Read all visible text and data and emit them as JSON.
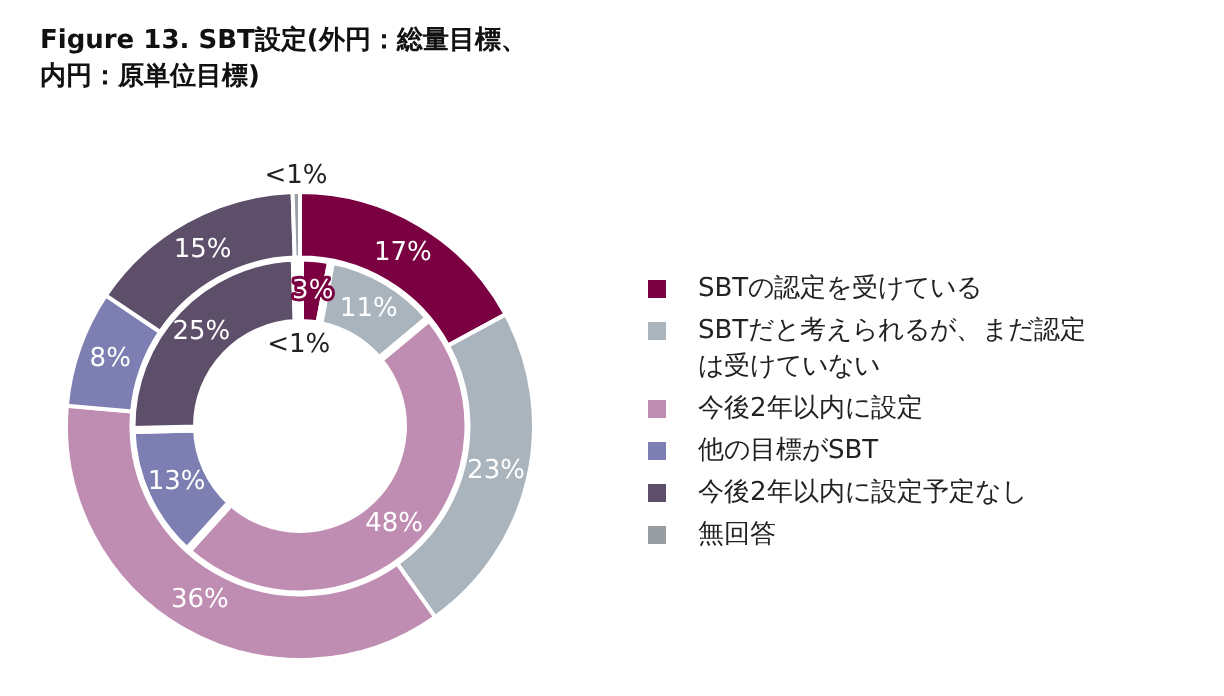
{
  "chart_data": {
    "type": "donut",
    "title": "Figure 13. SBT設定(外円：総量目標、内円：原単位目標)",
    "categories": [
      "SBTの認定を受けている",
      "SBTだと考えられるが、まだ認定は受けていない",
      "今後2年以内に設定",
      "他の目標がSBT",
      "今後2年以内に設定予定なし",
      "無回答"
    ],
    "colors": [
      "#7b0041",
      "#a9b4bd",
      "#c08db2",
      "#7d7fb2",
      "#5d4e6a",
      "#999ea3"
    ],
    "series": [
      {
        "values": [
          17,
          23,
          36,
          8,
          15,
          0.5
        ],
        "value_labels": [
          "17%",
          "23%",
          "36%",
          "8%",
          "15%",
          "<1%"
        ]
      },
      {
        "values": [
          3,
          11,
          48,
          13,
          25,
          0.5
        ],
        "value_labels": [
          "3%",
          "11%",
          "48%",
          "13%",
          "25%",
          "<1%"
        ]
      }
    ],
    "legend": "right"
  }
}
